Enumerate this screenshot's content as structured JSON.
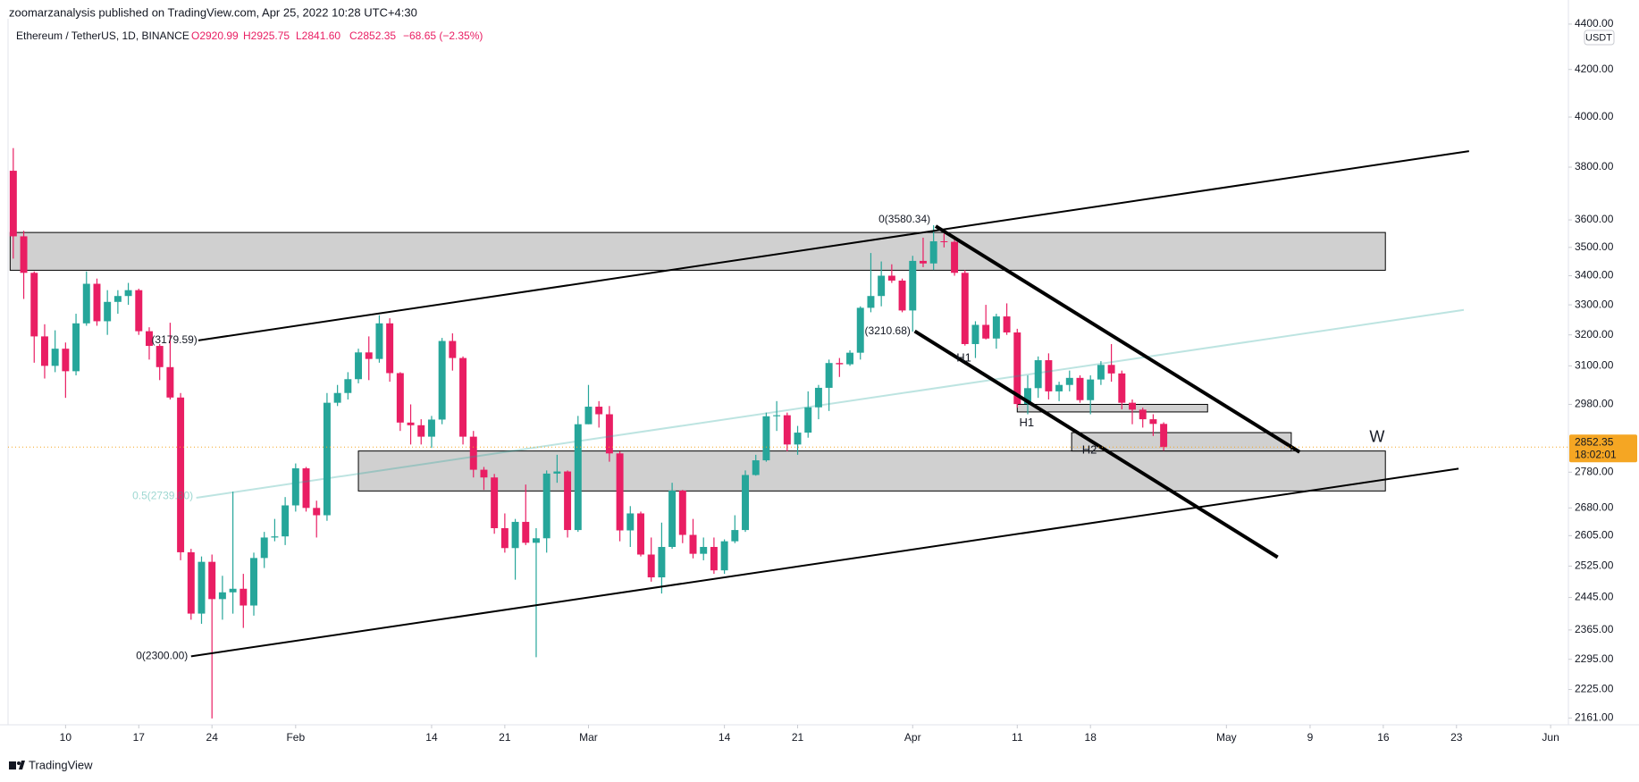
{
  "header": {
    "publisher": "zoomarzanalysis published on TradingView.com, Apr 25, 2022 10:28 UTC+4:30"
  },
  "footer": {
    "brand": "TradingView"
  },
  "chart_data": {
    "type": "candlestick",
    "symbol": "Ethereum / TetherUS, 1D, BINANCE",
    "ohlc_legend": {
      "open": "O2920.99",
      "high": "H2925.75",
      "low": "L2841.60",
      "close": "C2852.35",
      "change": "−68.65 (−2.35%)"
    },
    "currency": "USDT",
    "open": [
      3786,
      3540,
      3410,
      3195,
      3100,
      3155,
      3083,
      3238,
      3372,
      3245,
      3310,
      3330,
      3350,
      3212,
      3164,
      3096,
      3001,
      2561,
      2405,
      2536,
      2441,
      2458,
      2467,
      2425,
      2546,
      2600,
      2603,
      2687,
      2791,
      2680,
      2660,
      2985,
      3015,
      3058,
      3143,
      3122,
      3238,
      3077,
      2925,
      2917,
      2883,
      2934,
      3180,
      3125,
      2883,
      2787,
      2765,
      2625,
      2572,
      2642,
      2586,
      2598,
      2776,
      2782,
      2620,
      2920,
      2973,
      2950,
      2834,
      2619,
      2665,
      2555,
      2496,
      2575,
      2728,
      2607,
      2557,
      2575,
      2514,
      2590,
      2620,
      2772,
      2814,
      2944,
      2947,
      2860,
      2895,
      2971,
      3031,
      3109,
      3105,
      3142,
      3290,
      3330,
      3400,
      3383,
      3281,
      3452,
      3443,
      3522,
      3520,
      3410,
      3170,
      3233,
      3188,
      3261,
      3208,
      2981,
      3030,
      3118,
      3020,
      3040,
      3062,
      2993,
      3057,
      3103,
      3076,
      2985,
      2964,
      2935,
      2920.99
    ],
    "high": [
      3875,
      3560,
      3415,
      3235,
      3215,
      3175,
      3270,
      3415,
      3390,
      3350,
      3350,
      3375,
      3355,
      3225,
      3170,
      3240,
      3015,
      2570,
      2550,
      2555,
      2500,
      2725,
      2505,
      2560,
      2615,
      2650,
      2710,
      2805,
      2795,
      2700,
      3015,
      3040,
      3080,
      3155,
      3195,
      3265,
      3255,
      3080,
      2980,
      2935,
      2945,
      3190,
      3205,
      3130,
      2900,
      2795,
      2775,
      2665,
      2650,
      2745,
      2625,
      2785,
      2830,
      2785,
      2945,
      3040,
      2990,
      2975,
      2840,
      2685,
      2670,
      2600,
      2640,
      2750,
      2730,
      2650,
      2600,
      2600,
      2595,
      2660,
      2785,
      2830,
      2955,
      2990,
      2955,
      2915,
      3020,
      3040,
      3120,
      3125,
      3150,
      3295,
      3480,
      3450,
      3440,
      3390,
      3470,
      3535,
      3580.34,
      3550,
      3540,
      3420,
      3245,
      3300,
      3270,
      3305,
      3220,
      3070,
      3130,
      3140,
      3050,
      3085,
      3070,
      3070,
      3115,
      3170,
      3085,
      2995,
      2970,
      2950,
      2925.75
    ],
    "low": [
      3460,
      3320,
      3110,
      3060,
      3080,
      3000,
      3070,
      3230,
      3230,
      3200,
      3270,
      3300,
      3200,
      3120,
      3055,
      2995,
      2540,
      2390,
      2380,
      2160,
      2390,
      2405,
      2370,
      2400,
      2520,
      2590,
      2580,
      2670,
      2670,
      2600,
      2645,
      2975,
      2995,
      3045,
      3055,
      3110,
      3050,
      2900,
      2860,
      2860,
      2850,
      2920,
      3085,
      2860,
      2765,
      2730,
      2610,
      2560,
      2490,
      2580,
      2300,
      2560,
      2750,
      2600,
      2615,
      2920,
      2910,
      2810,
      2590,
      2575,
      2550,
      2485,
      2455,
      2570,
      2585,
      2545,
      2540,
      2505,
      2505,
      2585,
      2615,
      2770,
      2810,
      2900,
      2840,
      2830,
      2880,
      2935,
      2960,
      3065,
      3100,
      3120,
      3275,
      3295,
      3375,
      3275,
      3210.68,
      3430,
      3420,
      3500,
      3400,
      3165,
      3125,
      3185,
      3155,
      3200,
      2970,
      2950,
      3000,
      2995,
      2990,
      3020,
      2985,
      2950,
      3040,
      3050,
      2965,
      2920,
      2910,
      2885,
      2841.6
    ],
    "close": [
      3540,
      3410,
      3195,
      3100,
      3155,
      3083,
      3238,
      3372,
      3245,
      3310,
      3330,
      3350,
      3212,
      3164,
      3096,
      3001,
      2561,
      2405,
      2536,
      2441,
      2458,
      2467,
      2425,
      2546,
      2600,
      2603,
      2687,
      2791,
      2680,
      2660,
      2985,
      3015,
      3058,
      3143,
      3122,
      3238,
      3077,
      2925,
      2917,
      2883,
      2934,
      3180,
      3125,
      2883,
      2787,
      2765,
      2625,
      2572,
      2642,
      2586,
      2598,
      2776,
      2782,
      2620,
      2920,
      2973,
      2950,
      2834,
      2619,
      2665,
      2555,
      2496,
      2575,
      2728,
      2607,
      2557,
      2575,
      2514,
      2590,
      2620,
      2772,
      2814,
      2944,
      2947,
      2860,
      2895,
      2971,
      3031,
      3109,
      3105,
      3142,
      3290,
      3330,
      3400,
      3383,
      3281,
      3452,
      3443,
      3522,
      3520,
      3410,
      3170,
      3233,
      3188,
      3261,
      3208,
      2981,
      3030,
      3118,
      3020,
      3040,
      3062,
      2993,
      3057,
      3103,
      3076,
      2985,
      2964,
      2935,
      2920.99,
      2852.35
    ],
    "up_color": "#26a69a",
    "down_color": "#e91e63",
    "log_scale": true,
    "grid": false,
    "xlim": [
      -0.5,
      148.7
    ],
    "xticks": [
      {
        "value": 5,
        "label": "10"
      },
      {
        "value": 12,
        "label": "17"
      },
      {
        "value": 19,
        "label": "24"
      },
      {
        "value": 27,
        "label": "Feb"
      },
      {
        "value": 40,
        "label": "14"
      },
      {
        "value": 47,
        "label": "21"
      },
      {
        "value": 55,
        "label": "Mar"
      },
      {
        "value": 68,
        "label": "14"
      },
      {
        "value": 75,
        "label": "21"
      },
      {
        "value": 86,
        "label": "Apr"
      },
      {
        "value": 96,
        "label": "11"
      },
      {
        "value": 103,
        "label": "18"
      },
      {
        "value": 116,
        "label": "May"
      },
      {
        "value": 124,
        "label": "9"
      },
      {
        "value": 131,
        "label": "16"
      },
      {
        "value": 138,
        "label": "23"
      },
      {
        "value": 147,
        "label": "Jun"
      }
    ],
    "ylim": [
      2146,
      4424
    ],
    "yticks": [
      {
        "value": 4400,
        "label": "4400.00"
      },
      {
        "value": 4200,
        "label": "4200.00"
      },
      {
        "value": 4000,
        "label": "4000.00"
      },
      {
        "value": 3800,
        "label": "3800.00"
      },
      {
        "value": 3600,
        "label": "3600.00"
      },
      {
        "value": 3500,
        "label": "3500.00"
      },
      {
        "value": 3400,
        "label": "3400.00"
      },
      {
        "value": 3300,
        "label": "3300.00"
      },
      {
        "value": 3200,
        "label": "3200.00"
      },
      {
        "value": 3100,
        "label": "3100.00"
      },
      {
        "value": 2980,
        "label": "2980.00"
      },
      {
        "value": 2780,
        "label": "2780.00"
      },
      {
        "value": 2680,
        "label": "2680.00"
      },
      {
        "value": 2605,
        "label": "2605.00"
      },
      {
        "value": 2525,
        "label": "2525.00"
      },
      {
        "value": 2445,
        "label": "2445.00"
      },
      {
        "value": 2365,
        "label": "2365.00"
      },
      {
        "value": 2295,
        "label": "2295.00"
      },
      {
        "value": 2225,
        "label": "2225.00"
      },
      {
        "value": 2161,
        "label": "2161.00"
      }
    ],
    "last_price_label": "2852.35",
    "countdown": "18:02:01",
    "last_price_color": "#f5a623",
    "annotations": [
      "0(3580.34)",
      "(3210.68)",
      "(3179.59)",
      "0(2300.00)",
      "0.5(2739.80)",
      "H1",
      "H1",
      "H2",
      "W"
    ]
  }
}
